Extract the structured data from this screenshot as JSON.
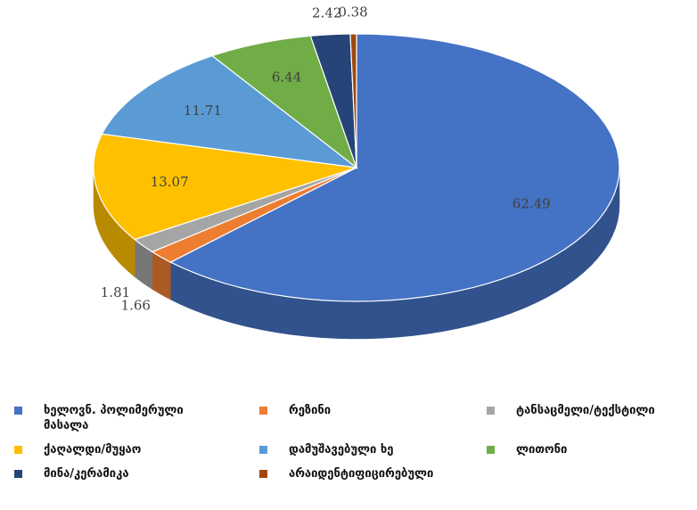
{
  "chart_data": {
    "type": "pie",
    "categories": [
      "ხელოვნ. პოლიმერული მასალა",
      "რეზინი",
      "ტანსაცმელი/ტექსტილი",
      "ქაღალდი/მუყაო",
      "დამუშავებული ხე",
      "ლითონი",
      "მინა/კერამიკა",
      "არაიდენტიფიცირებული"
    ],
    "values": [
      62.49,
      1.66,
      1.81,
      13.07,
      11.71,
      6.44,
      2.42,
      0.38
    ],
    "colors": [
      "#4472c4",
      "#ed7d31",
      "#a5a5a5",
      "#ffc000",
      "#5b9bd5",
      "#70ad47",
      "#264478",
      "#9e480e"
    ],
    "legend": "bottom"
  }
}
